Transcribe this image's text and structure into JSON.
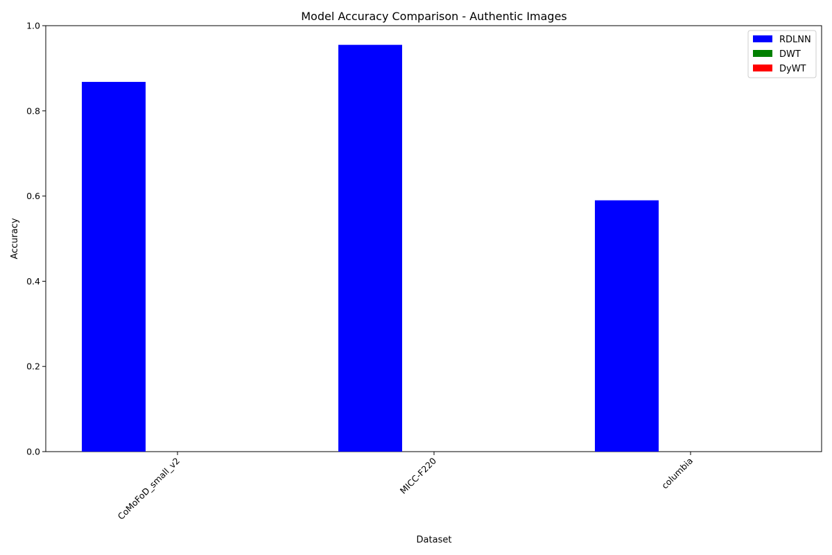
{
  "chart_data": {
    "type": "bar",
    "title": "Model Accuracy Comparison - Authentic Images",
    "xlabel": "Dataset",
    "ylabel": "Accuracy",
    "categories": [
      "CoMoFoD_small_v2",
      "MICC-F220",
      "columbia"
    ],
    "series": [
      {
        "name": "RDLNN",
        "values": [
          0.868,
          0.955,
          0.59
        ],
        "color": "#0000ff"
      },
      {
        "name": "DWT",
        "values": [
          0,
          0,
          0
        ],
        "color": "#008000"
      },
      {
        "name": "DyWT",
        "values": [
          0,
          0,
          0
        ],
        "color": "#ff0000"
      }
    ],
    "ylim": [
      0,
      1.0
    ],
    "yticks": [
      0.0,
      0.2,
      0.4,
      0.6,
      0.8,
      1.0
    ],
    "ytick_labels": [
      "0.0",
      "0.2",
      "0.4",
      "0.6",
      "0.8",
      "1.0"
    ],
    "grid": false,
    "legend_position": "top-right",
    "xtick_rotation": "45"
  }
}
